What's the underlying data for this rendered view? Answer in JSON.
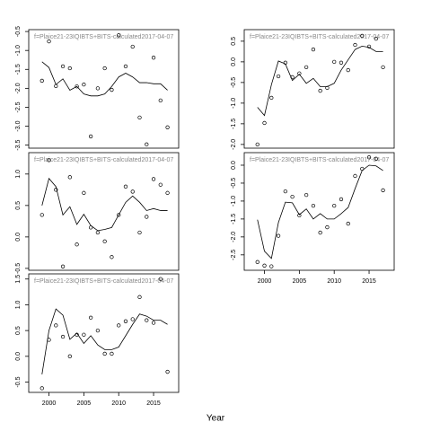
{
  "chart_data": [
    {
      "type": "line",
      "title": "f=Plaice21-23IQIBTS+BITS-calculated2017-04-07",
      "x": [
        1999,
        2000,
        2001,
        2002,
        2003,
        2004,
        2005,
        2006,
        2007,
        2008,
        2009,
        2010,
        2011,
        2012,
        2013,
        2014,
        2015,
        2016,
        2017
      ],
      "series": [
        {
          "style": "points",
          "color": "#000000",
          "values": [
            -1.8,
            -0.76,
            -1.94,
            -1.42,
            -1.47,
            -1.95,
            -1.9,
            -3.27,
            -2.0,
            -1.47,
            -2.04,
            -0.6,
            -1.42,
            -0.9,
            -2.77,
            -3.48,
            -1.19,
            -2.32,
            -3.03
          ]
        },
        {
          "style": "line",
          "color": "#000000",
          "values": [
            -1.3,
            -1.45,
            -1.9,
            -1.75,
            -2.05,
            -1.95,
            -2.15,
            -2.2,
            -2.2,
            -2.15,
            -1.95,
            -1.7,
            -1.6,
            -1.7,
            -1.85,
            -1.85,
            -1.88,
            -1.88,
            -2.05
          ]
        }
      ],
      "xlim": [
        1997.1,
        2018.6
      ],
      "xticks": [
        2000,
        2005,
        2010,
        2015
      ],
      "show_xticks": false,
      "ylim": [
        -3.58,
        -0.45
      ],
      "yticks": [
        -0.5,
        {
          "value": -1,
          "label": "-1.0"
        },
        -1.5,
        {
          "value": -2,
          "label": "-2.0"
        },
        -2.5,
        {
          "value": -3,
          "label": "-3.0"
        },
        -3.5
      ]
    },
    {
      "type": "line",
      "title": "f=Plaice21-23IQIBTS+BITS-calculated2017-04-07",
      "x": [
        1999,
        2000,
        2001,
        2002,
        2003,
        2004,
        2005,
        2006,
        2007,
        2008,
        2009,
        2010,
        2011,
        2012,
        2013,
        2014,
        2015,
        2016,
        2017
      ],
      "series": [
        {
          "style": "points",
          "color": "#000000",
          "values": [
            0.35,
            1.22,
            0.75,
            -0.47,
            0.95,
            -0.12,
            0.7,
            0.15,
            0.07,
            -0.07,
            -0.32,
            0.35,
            0.8,
            0.72,
            0.07,
            0.32,
            0.92,
            0.83,
            0.7
          ]
        },
        {
          "style": "line",
          "color": "#000000",
          "values": [
            0.5,
            0.93,
            0.8,
            0.35,
            0.48,
            0.2,
            0.36,
            0.18,
            0.1,
            0.12,
            0.15,
            0.35,
            0.55,
            0.65,
            0.55,
            0.42,
            0.45,
            0.42,
            0.42
          ]
        }
      ],
      "xlim": [
        1997.1,
        2018.6
      ],
      "xticks": [
        2000,
        2005,
        2010,
        2015
      ],
      "show_xticks": false,
      "ylim": [
        -0.53,
        1.34
      ],
      "yticks": [
        {
          "value": 1,
          "label": "1.0"
        },
        0.5,
        {
          "value": 0,
          "label": "0.0"
        },
        -0.5
      ]
    },
    {
      "type": "line",
      "title": "f=Plaice21-23IQIBTS+BITS-calculated2017-04-07",
      "xlabel": "Year",
      "x": [
        1999,
        2000,
        2001,
        2002,
        2003,
        2004,
        2005,
        2006,
        2007,
        2008,
        2009,
        2010,
        2011,
        2012,
        2013,
        2014,
        2015,
        2016,
        2017
      ],
      "series": [
        {
          "style": "points",
          "color": "#000000",
          "values": [
            -0.62,
            0.32,
            0.6,
            0.38,
            0.0,
            0.42,
            0.42,
            0.75,
            0.5,
            0.05,
            0.05,
            0.6,
            0.68,
            0.72,
            1.15,
            0.7,
            0.65,
            1.5,
            -0.3
          ]
        },
        {
          "style": "line",
          "color": "#000000",
          "values": [
            -0.35,
            0.5,
            0.92,
            0.8,
            0.33,
            0.45,
            0.25,
            0.4,
            0.22,
            0.13,
            0.13,
            0.18,
            0.4,
            0.62,
            0.82,
            0.78,
            0.7,
            0.7,
            0.62
          ]
        }
      ],
      "xlim": [
        1997.1,
        2018.6
      ],
      "xticks": [
        2000,
        2005,
        2010,
        2015
      ],
      "show_xticks": true,
      "ylim": [
        -0.7,
        1.6
      ],
      "yticks": [
        1.5,
        {
          "value": 1,
          "label": "1.0"
        },
        0.5,
        {
          "value": 0,
          "label": "0.0"
        },
        -0.5
      ]
    },
    {
      "type": "line",
      "title": "f=Plaice21-23IQIBTS+BITS-calculated2017-04-07",
      "x": [
        1999,
        2000,
        2001,
        2002,
        2003,
        2004,
        2005,
        2006,
        2007,
        2008,
        2009,
        2010,
        2011,
        2012,
        2013,
        2014,
        2015,
        2016,
        2017
      ],
      "series": [
        {
          "style": "points",
          "color": "#000000",
          "values": [
            -2.0,
            -1.48,
            -0.87,
            -0.35,
            -0.02,
            -0.37,
            -0.28,
            -0.13,
            0.3,
            -0.7,
            -0.63,
            0.0,
            -0.02,
            -0.2,
            0.41,
            0.63,
            0.37,
            0.56,
            -0.13
          ]
        },
        {
          "style": "line",
          "color": "#000000",
          "values": [
            -1.1,
            -1.3,
            -0.55,
            0.02,
            -0.05,
            -0.45,
            -0.3,
            -0.52,
            -0.4,
            -0.6,
            -0.6,
            -0.52,
            -0.2,
            0.05,
            0.3,
            0.38,
            0.35,
            0.25,
            0.25
          ]
        }
      ],
      "xlim": [
        1997.1,
        2018.6
      ],
      "xticks": [
        2000,
        2005,
        2010,
        2015
      ],
      "show_xticks": false,
      "ylim": [
        -2.09,
        0.78
      ],
      "yticks": [
        0.5,
        {
          "value": 0,
          "label": "0.0"
        },
        -0.5,
        {
          "value": -1,
          "label": "-1.0"
        },
        -1.5,
        {
          "value": -2,
          "label": "-2.0"
        }
      ]
    },
    {
      "type": "line",
      "title": "f=Plaice21-23IQIBTS+BITS-calculated2017-04-07",
      "x": [
        1999,
        2000,
        2001,
        2002,
        2003,
        2004,
        2005,
        2006,
        2007,
        2008,
        2009,
        2010,
        2011,
        2012,
        2013,
        2014,
        2015,
        2016,
        2017
      ],
      "series": [
        {
          "style": "points",
          "color": "#000000",
          "values": [
            -2.7,
            -2.8,
            -2.82,
            -1.97,
            -0.73,
            -0.88,
            -1.4,
            -0.83,
            -1.13,
            -1.88,
            -1.73,
            -1.13,
            -0.95,
            -1.63,
            -0.3,
            -0.1,
            0.22,
            0.18,
            -0.7
          ]
        },
        {
          "style": "line",
          "color": "#000000",
          "values": [
            -1.52,
            -2.4,
            -2.6,
            -1.6,
            -1.03,
            -1.05,
            -1.38,
            -1.22,
            -1.5,
            -1.35,
            -1.5,
            -1.5,
            -1.35,
            -1.18,
            -0.65,
            -0.15,
            0.0,
            -0.02,
            -0.15
          ]
        }
      ],
      "xlim": [
        1997.1,
        2018.6
      ],
      "xticks": [
        2000,
        2005,
        2010,
        2015
      ],
      "show_xticks": true,
      "ylim": [
        -2.93,
        0.35
      ],
      "yticks": [
        {
          "value": 0,
          "label": "0.0"
        },
        -0.5,
        {
          "value": -1,
          "label": "-1.0"
        },
        -1.5,
        {
          "value": -2,
          "label": "-2.0"
        },
        -2.5
      ]
    }
  ]
}
